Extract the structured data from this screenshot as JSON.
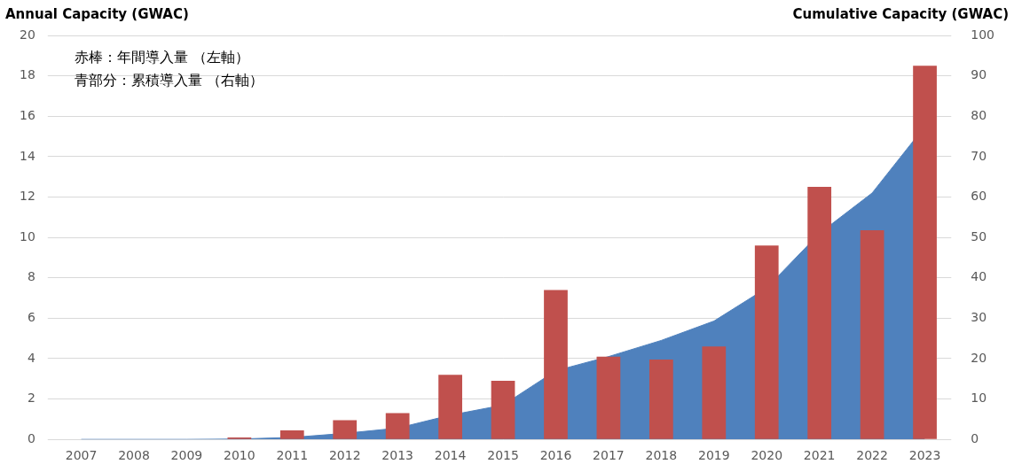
{
  "chart_data": {
    "type": "bar",
    "ylabel": "Annual Capacity (GWAC)",
    "y2label": "Cumulative Capacity (GWAC)",
    "categories": [
      "2007",
      "2008",
      "2009",
      "2010",
      "2011",
      "2012",
      "2013",
      "2014",
      "2015",
      "2016",
      "2017",
      "2018",
      "2019",
      "2020",
      "2021",
      "2022",
      "2023"
    ],
    "series": [
      {
        "name": "赤棒：年間導入量 （左軸）",
        "type": "bar",
        "color": "#c0504d",
        "values": [
          0,
          0,
          0,
          0.1,
          0.45,
          0.95,
          1.3,
          3.2,
          2.9,
          7.4,
          4.1,
          3.95,
          4.6,
          9.6,
          12.5,
          10.35,
          18.5
        ]
      },
      {
        "name": "青部分：累積導入量 （右軸）",
        "type": "area",
        "color": "#4f81bd",
        "axis": "y2",
        "values": [
          0,
          0,
          0,
          0.1,
          0.5,
          1.5,
          2.8,
          6,
          8.5,
          17,
          20.5,
          24.5,
          29.3,
          37.5,
          51,
          61,
          77.5
        ]
      }
    ],
    "ylim": [
      0,
      20
    ],
    "yticks": [
      0,
      2,
      4,
      6,
      8,
      10,
      12,
      14,
      16,
      18,
      20
    ],
    "y2lim": [
      0,
      100
    ],
    "y2ticks": [
      0,
      10,
      20,
      30,
      40,
      50,
      60,
      70,
      80,
      90,
      100
    ],
    "grid": true,
    "legend": "upper left"
  }
}
